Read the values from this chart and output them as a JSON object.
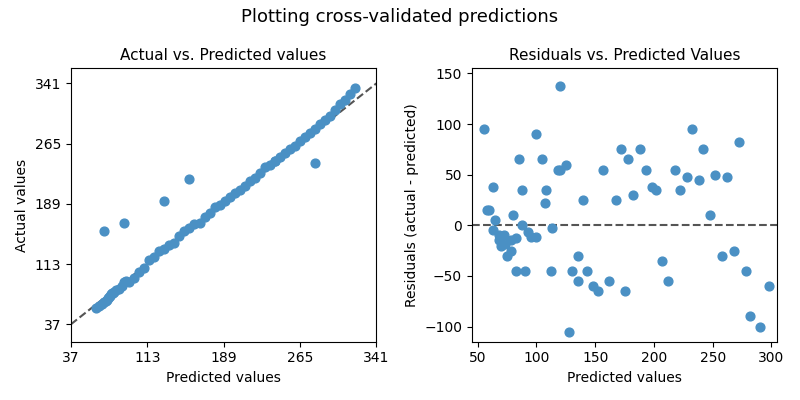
{
  "title": "Plotting cross-validated predictions",
  "left_title": "Actual vs. Predicted values",
  "right_title": "Residuals vs. Predicted Values",
  "left_xlabel": "Predicted values",
  "left_ylabel": "Actual values",
  "right_xlabel": "Predicted values",
  "right_ylabel": "Residuals (actual - predicted)",
  "dot_color": "#4a90c4",
  "dot_size": 40,
  "left_predicted": [
    62,
    65,
    68,
    70,
    72,
    73,
    74,
    75,
    76,
    77,
    78,
    79,
    80,
    82,
    85,
    88,
    90,
    92,
    95,
    100,
    105,
    110,
    115,
    120,
    125,
    130,
    135,
    140,
    145,
    150,
    155,
    160,
    165,
    170,
    175,
    180,
    185,
    190,
    195,
    200,
    205,
    210,
    215,
    220,
    225,
    230,
    235,
    240,
    245,
    250,
    255,
    260,
    265,
    270,
    275,
    280,
    285,
    290,
    295,
    300,
    305,
    310,
    315,
    320,
    90,
    155,
    240,
    280,
    70,
    130
  ],
  "left_actual": [
    58,
    60,
    62,
    65,
    67,
    68,
    70,
    72,
    73,
    75,
    76,
    77,
    78,
    80,
    82,
    85,
    90,
    92,
    90,
    95,
    103,
    108,
    118,
    122,
    130,
    132,
    137,
    140,
    148,
    155,
    158,
    163,
    165,
    172,
    178,
    185,
    188,
    193,
    198,
    203,
    207,
    212,
    218,
    222,
    228,
    235,
    238,
    243,
    248,
    253,
    258,
    262,
    268,
    273,
    278,
    283,
    290,
    295,
    300,
    308,
    315,
    320,
    328,
    335,
    165,
    220,
    243,
    241,
    155,
    192
  ],
  "right_predicted": [
    55,
    60,
    63,
    65,
    68,
    70,
    72,
    75,
    78,
    80,
    83,
    85,
    88,
    90,
    95,
    100,
    105,
    108,
    112,
    118,
    120,
    125,
    130,
    135,
    140,
    143,
    148,
    152,
    157,
    162,
    168,
    172,
    175,
    178,
    182,
    188,
    193,
    198,
    202,
    207,
    212,
    218,
    222,
    228,
    232,
    238,
    242,
    248,
    252,
    258,
    262,
    268,
    272,
    278,
    282,
    290,
    298,
    58,
    63,
    68,
    73,
    78,
    83,
    88,
    93,
    100,
    107,
    113,
    120,
    128,
    135
  ],
  "right_residuals": [
    95,
    15,
    38,
    5,
    -15,
    -20,
    -10,
    -30,
    -25,
    10,
    -13,
    65,
    35,
    -45,
    -12,
    90,
    65,
    35,
    -45,
    55,
    55,
    60,
    -45,
    -55,
    25,
    -45,
    -60,
    -65,
    55,
    -55,
    25,
    75,
    -65,
    65,
    30,
    75,
    55,
    38,
    35,
    -35,
    -55,
    55,
    35,
    48,
    95,
    45,
    75,
    10,
    50,
    -30,
    48,
    -25,
    82,
    -45,
    -90,
    -100,
    -60,
    15,
    -5,
    -10,
    -18,
    -15,
    -45,
    0,
    -7,
    -12,
    22,
    -3,
    138,
    -105,
    -30
  ],
  "left_xlim": [
    37,
    341
  ],
  "left_ylim": [
    15,
    360
  ],
  "left_xticks": [
    37,
    113,
    189,
    265,
    341
  ],
  "left_yticks": [
    37,
    113,
    189,
    265,
    341
  ],
  "right_xlim": [
    45,
    305
  ],
  "right_ylim": [
    -115,
    155
  ],
  "right_xticks": [
    50,
    100,
    150,
    200,
    250,
    300
  ],
  "right_yticks": [
    -100,
    -50,
    0,
    50,
    100,
    150
  ]
}
